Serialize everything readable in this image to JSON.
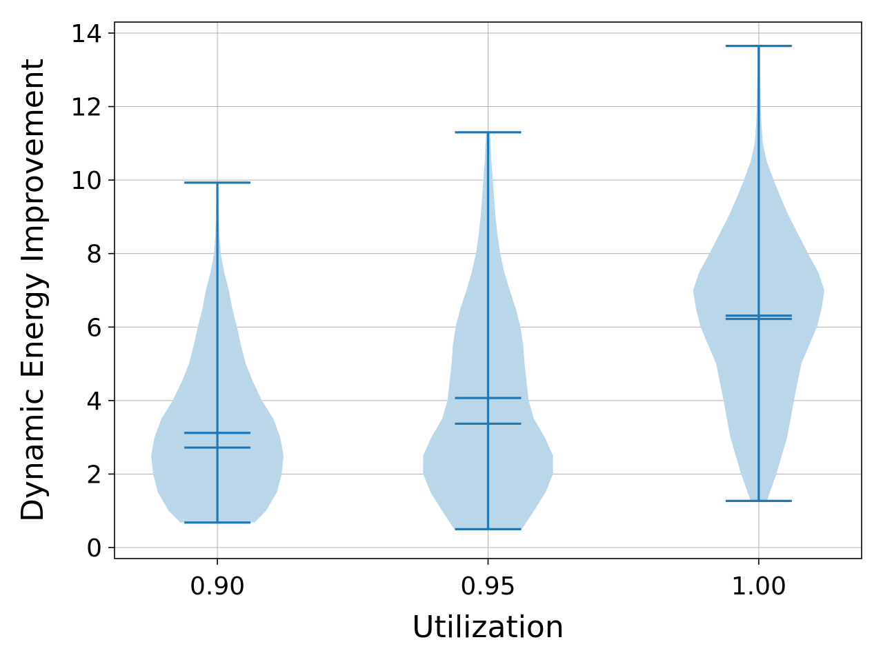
{
  "chart_data": {
    "type": "violin",
    "title": "",
    "xlabel": "Utilization",
    "ylabel": "Dynamic Energy Improvement",
    "ylim": [
      -0.3,
      14.3
    ],
    "xlim": [
      0.881,
      1.019
    ],
    "yticks": [
      0,
      2,
      4,
      6,
      8,
      10,
      12,
      14
    ],
    "xticks": [
      0.9,
      0.95,
      1.0
    ],
    "xtick_labels": [
      "0.90",
      "0.95",
      "1.00"
    ],
    "grid": true,
    "legend": "none",
    "colors": {
      "body": "#bad6e9",
      "lines": "#1f77b4"
    },
    "violins": [
      {
        "x": 0.9,
        "label": "0.90",
        "min": 0.68,
        "max": 9.93,
        "mean": 3.12,
        "median": 2.72,
        "profile": [
          [
            0.68,
            0.55
          ],
          [
            1.0,
            0.72
          ],
          [
            1.5,
            0.88
          ],
          [
            2.0,
            0.95
          ],
          [
            2.5,
            0.98
          ],
          [
            3.0,
            0.93
          ],
          [
            3.5,
            0.83
          ],
          [
            4.0,
            0.66
          ],
          [
            4.5,
            0.53
          ],
          [
            5.0,
            0.42
          ],
          [
            5.5,
            0.35
          ],
          [
            6.0,
            0.29
          ],
          [
            6.5,
            0.22
          ],
          [
            7.0,
            0.17
          ],
          [
            7.5,
            0.1
          ],
          [
            8.0,
            0.05
          ],
          [
            8.5,
            0.03
          ],
          [
            9.0,
            0.02
          ],
          [
            9.93,
            0.01
          ]
        ]
      },
      {
        "x": 0.95,
        "label": "0.95",
        "min": 0.5,
        "max": 11.3,
        "mean": 4.07,
        "median": 3.37,
        "profile": [
          [
            0.5,
            0.5
          ],
          [
            1.0,
            0.68
          ],
          [
            1.5,
            0.85
          ],
          [
            2.0,
            0.96
          ],
          [
            2.5,
            0.96
          ],
          [
            3.0,
            0.84
          ],
          [
            3.5,
            0.68
          ],
          [
            4.0,
            0.6
          ],
          [
            4.5,
            0.57
          ],
          [
            5.0,
            0.54
          ],
          [
            5.5,
            0.52
          ],
          [
            6.0,
            0.48
          ],
          [
            6.5,
            0.41
          ],
          [
            7.0,
            0.32
          ],
          [
            7.5,
            0.24
          ],
          [
            8.0,
            0.18
          ],
          [
            8.5,
            0.14
          ],
          [
            9.0,
            0.11
          ],
          [
            9.5,
            0.09
          ],
          [
            10.0,
            0.07
          ],
          [
            10.5,
            0.05
          ],
          [
            11.3,
            0.03
          ]
        ]
      },
      {
        "x": 1.0,
        "label": "1.00",
        "min": 1.27,
        "max": 13.65,
        "mean": 6.31,
        "median": 6.22,
        "profile": [
          [
            1.27,
            0.12
          ],
          [
            2.0,
            0.26
          ],
          [
            3.0,
            0.42
          ],
          [
            4.0,
            0.52
          ],
          [
            5.0,
            0.63
          ],
          [
            6.0,
            0.86
          ],
          [
            6.5,
            0.93
          ],
          [
            7.0,
            0.97
          ],
          [
            7.5,
            0.88
          ],
          [
            8.0,
            0.73
          ],
          [
            8.5,
            0.59
          ],
          [
            9.0,
            0.45
          ],
          [
            9.5,
            0.33
          ],
          [
            10.0,
            0.22
          ],
          [
            10.5,
            0.12
          ],
          [
            11.0,
            0.06
          ],
          [
            11.5,
            0.04
          ],
          [
            12.0,
            0.03
          ],
          [
            13.0,
            0.02
          ],
          [
            13.65,
            0.02
          ]
        ]
      }
    ]
  }
}
